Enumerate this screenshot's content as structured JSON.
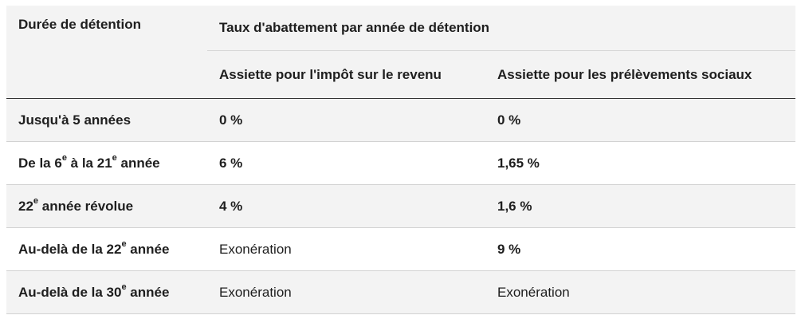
{
  "table": {
    "header": {
      "duree": "Durée de détention",
      "taux": "Taux d'abattement par année de détention",
      "impot": "Assiette pour l'impôt sur le revenu",
      "prelevements": "Assiette pour les prélèvements sociaux"
    },
    "rows": [
      {
        "label_a": "Jusqu'à 5 années",
        "sup1": "",
        "label_b": "",
        "sup2": "",
        "label_c": "",
        "impot": "0 %",
        "prelevements": "0 %"
      },
      {
        "label_a": "De la 6",
        "sup1": "e",
        "label_b": " à la 21",
        "sup2": "e",
        "label_c": " année",
        "impot": "6 %",
        "prelevements": "1,65 %"
      },
      {
        "label_a": "22",
        "sup1": "e",
        "label_b": " année révolue",
        "sup2": "",
        "label_c": "",
        "impot": "4 %",
        "prelevements": "1,6 %"
      },
      {
        "label_a": "Au-delà de la 22",
        "sup1": "e",
        "label_b": " année",
        "sup2": "",
        "label_c": "",
        "impot": "Exonération",
        "prelevements": "9 %"
      },
      {
        "label_a": "Au-delà de la 30",
        "sup1": "e",
        "label_b": " année",
        "sup2": "",
        "label_c": "",
        "impot": "Exonération",
        "prelevements": "Exonération"
      }
    ]
  }
}
